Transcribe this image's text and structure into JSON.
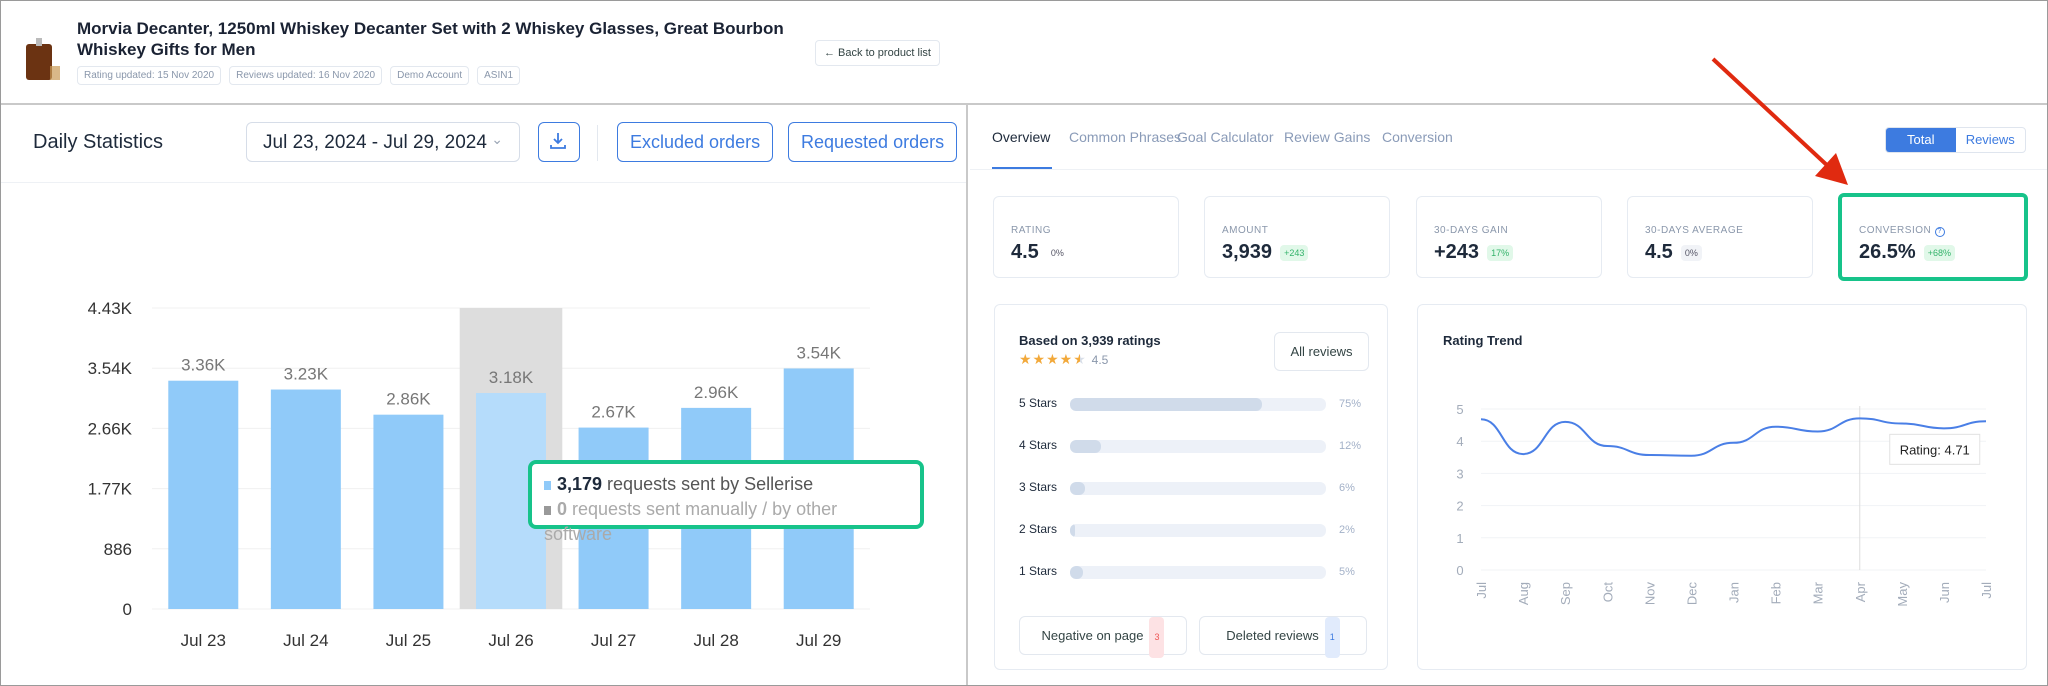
{
  "header": {
    "title": "Morvia Decanter, 1250ml Whiskey Decanter Set with 2 Whiskey Glasses, Great Bourbon Whiskey Gifts for Men",
    "chips": [
      "Rating updated: 15 Nov 2020",
      "Reviews updated: 16 Nov 2020",
      "Demo Account",
      "ASIN1"
    ],
    "back_label": "← Back to product list",
    "product_icon": "decanter-image"
  },
  "left": {
    "title": "Daily Statistics",
    "date_range": "Jul 23, 2024 - Jul 29, 2024",
    "download_icon": "download-icon",
    "excluded_label": "Excluded orders",
    "requested_label": "Requested orders",
    "tooltip": {
      "line1_value": "3,179",
      "line1_text": " requests sent by Sellerise",
      "line2_value": "0",
      "line2_text": " requests sent manually / by other software"
    }
  },
  "right": {
    "tabs": [
      "Overview",
      "Common Phrases",
      "Goal Calculator",
      "Review Gains",
      "Conversion"
    ],
    "active_tab": "Overview",
    "toggle": [
      "Total",
      "Reviews"
    ],
    "toggle_active": "Total",
    "stats": [
      {
        "label": "RATING",
        "value": "4.5",
        "badge": "0%",
        "tone": "none"
      },
      {
        "label": "AMOUNT",
        "value": "3,939",
        "badge": "+243",
        "tone": "green"
      },
      {
        "label": "30-DAYS GAIN",
        "value": "+243",
        "badge": "17%",
        "tone": "green"
      },
      {
        "label": "30-DAYS AVERAGE",
        "value": "4.5",
        "badge": "0%",
        "tone": "gray"
      },
      {
        "label": "CONVERSION",
        "value": "26.5%",
        "badge": "+68%",
        "tone": "green",
        "help_icon": "help-circle-icon"
      }
    ],
    "ratings": {
      "title": "Based on 3,939 ratings",
      "stars": 4.5,
      "score": "4.5",
      "all_reviews": "All reviews",
      "rows": [
        {
          "label": "5 Stars",
          "pct": 75,
          "text": "75%"
        },
        {
          "label": "4 Stars",
          "pct": 12,
          "text": "12%"
        },
        {
          "label": "3 Stars",
          "pct": 6,
          "text": "6%"
        },
        {
          "label": "2 Stars",
          "pct": 2,
          "text": "2%"
        },
        {
          "label": "1 Stars",
          "pct": 5,
          "text": "5%"
        }
      ],
      "negative_label": "Negative on page",
      "negative_count": "3",
      "deleted_label": "Deleted reviews",
      "deleted_count": "1"
    }
  },
  "colors": {
    "accent": "#3d7be0",
    "bar": "#90caf9",
    "bar_hover": "#b5dcfb",
    "highlight": "#17c38a",
    "arrow": "#e02a10",
    "trend": "#4a7fe6"
  },
  "chart_data": [
    {
      "type": "bar",
      "categories": [
        "Jul 23",
        "Jul 24",
        "Jul 25",
        "Jul 26",
        "Jul 27",
        "Jul 28",
        "Jul 29"
      ],
      "values": [
        3360,
        3230,
        2860,
        3179,
        2670,
        2960,
        3540
      ],
      "data_labels": [
        "3.36K",
        "3.23K",
        "2.86K",
        "3.18K",
        "2.67K",
        "2.96K",
        "3.54K"
      ],
      "y_ticks": [
        "0",
        "886",
        "1.77K",
        "2.66K",
        "3.54K",
        "4.43K"
      ],
      "ylim": [
        0,
        4430
      ],
      "hovered": "Jul 26",
      "grid": true
    },
    {
      "type": "line",
      "title": "Rating Trend",
      "categories": [
        "Jul",
        "Aug",
        "Sep",
        "Oct",
        "Nov",
        "Dec",
        "Jan",
        "Feb",
        "Mar",
        "Apr",
        "May",
        "Jun",
        "Jul"
      ],
      "values": [
        4.68,
        3.6,
        4.6,
        3.85,
        3.57,
        3.55,
        3.95,
        4.45,
        4.3,
        4.71,
        4.55,
        4.4,
        4.62
      ],
      "y_ticks": [
        "0",
        "1",
        "2",
        "3",
        "4",
        "5"
      ],
      "ylim": [
        0,
        5
      ],
      "grid": true,
      "tooltip": "Rating: 4.71",
      "hovered": "Apr"
    }
  ]
}
